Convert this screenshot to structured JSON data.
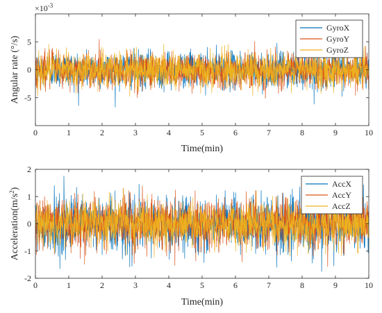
{
  "chart_data": [
    {
      "type": "line",
      "title": "",
      "xlabel": "Time(min)",
      "ylabel": "Angular rate (°/s)",
      "exponent_label": "×10",
      "exponent_power": "-3",
      "xlim": [
        0,
        10
      ],
      "ylim": [
        -10,
        10
      ],
      "xticks": [
        "0",
        "1",
        "2",
        "3",
        "4",
        "5",
        "6",
        "7",
        "8",
        "9",
        "10"
      ],
      "yticks": [
        5,
        0,
        -5
      ],
      "ytick_labels": [
        "5",
        "0",
        "-5"
      ],
      "noise": {
        "std": 1.6,
        "peak": 8.0
      },
      "legend_position": "top-right",
      "series": [
        {
          "name": "GyroX",
          "color": "#0072BD"
        },
        {
          "name": "GyroY",
          "color": "#D95319"
        },
        {
          "name": "GyroZ",
          "color": "#EDB120"
        }
      ]
    },
    {
      "type": "line",
      "title": "",
      "xlabel": "Time(min)",
      "ylabel_main": "Acceleration(m/s",
      "ylabel_sup": "2",
      "ylabel_end": ")",
      "xlim": [
        0,
        10
      ],
      "ylim": [
        -2,
        2
      ],
      "xticks": [
        "0",
        "1",
        "2",
        "3",
        "4",
        "5",
        "6",
        "7",
        "8",
        "9",
        "10"
      ],
      "yticks": [
        2,
        1,
        0,
        -1,
        -2
      ],
      "ytick_labels": [
        "2",
        "1",
        "0",
        "-1",
        "-2"
      ],
      "legend_position": "top-right",
      "series": [
        {
          "name": "AccX",
          "color": "#0072BD",
          "std": 0.5,
          "peak": 2.1,
          "bias": -0.05
        },
        {
          "name": "AccY",
          "color": "#D95319",
          "std": 0.45,
          "peak": 1.95,
          "bias": 0.05
        },
        {
          "name": "AccZ",
          "color": "#EDB120",
          "std": 0.4,
          "peak": 1.5,
          "bias": 0.0
        }
      ]
    }
  ]
}
